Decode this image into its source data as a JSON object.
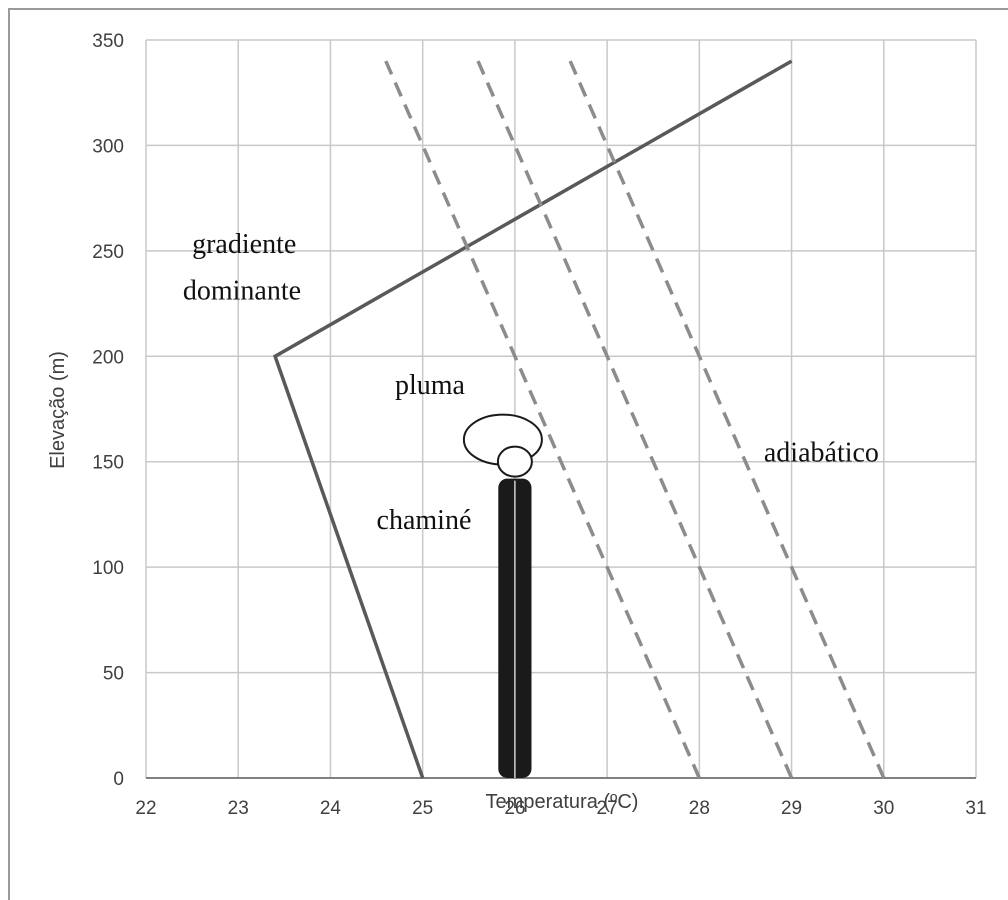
{
  "chart_data": {
    "type": "line",
    "xlabel": "Temperatura (ºC)",
    "ylabel": "Elevação (m)",
    "xlim": [
      22,
      31
    ],
    "ylim": [
      0,
      350
    ],
    "x_ticks": [
      22,
      23,
      24,
      25,
      26,
      27,
      28,
      29,
      30,
      31
    ],
    "y_ticks": [
      0,
      50,
      100,
      150,
      200,
      250,
      300,
      350
    ],
    "grid": true,
    "series": [
      {
        "name": "gradiente dominante",
        "style": "solid",
        "points": [
          [
            25,
            0
          ],
          [
            23.4,
            200
          ],
          [
            29,
            340
          ]
        ]
      },
      {
        "style": "dashed",
        "points": [
          [
            28,
            0
          ],
          [
            24.6,
            340
          ]
        ]
      },
      {
        "style": "dashed",
        "points": [
          [
            29,
            0
          ],
          [
            25.6,
            340
          ]
        ]
      },
      {
        "style": "dashed",
        "points": [
          [
            30,
            0
          ],
          [
            26.6,
            340
          ]
        ]
      }
    ],
    "stack": {
      "x": 26,
      "height": 142,
      "half_width": 0.18
    },
    "plume": {
      "x": 26,
      "base": 142
    },
    "annotations": [
      {
        "text": "gradiente",
        "x": 22.5,
        "y": 249
      },
      {
        "text": "dominante",
        "x": 22.4,
        "y": 227
      },
      {
        "text": "pluma",
        "x": 24.7,
        "y": 182
      },
      {
        "text": "chaminé",
        "x": 24.5,
        "y": 118
      },
      {
        "text": "adiabático",
        "x": 28.7,
        "y": 150
      }
    ],
    "colors": {
      "line": "#595959",
      "dash": "#8c8c8c",
      "grid": "#c8c8c8",
      "axis": "#808080",
      "stack": "#1a1a1a"
    }
  }
}
